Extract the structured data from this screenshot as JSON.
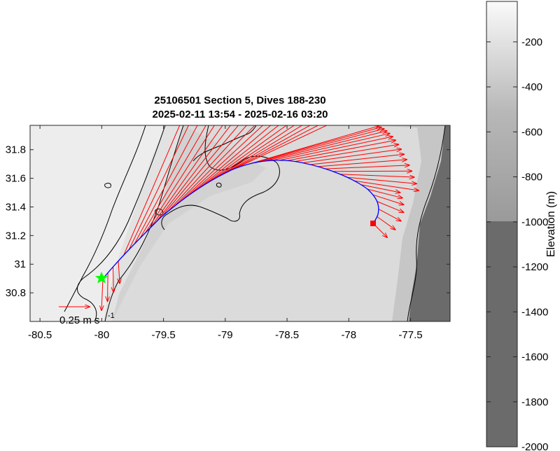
{
  "figure": {
    "title_line1": "25106501 Section 5, Dives 188-230",
    "title_line2": "2025-02-11 13:54 - 2025-02-16 03:20"
  },
  "map": {
    "x_ticks": [
      "-80.5",
      "-80",
      "-79.5",
      "-79",
      "-78.5",
      "-78",
      "-77.5"
    ],
    "x_tick_values": [
      -80.5,
      -80,
      -79.5,
      -79,
      -78.5,
      -78,
      -77.5
    ],
    "y_ticks": [
      "30.8",
      "31",
      "31.2",
      "31.4",
      "31.6",
      "31.8"
    ],
    "y_tick_values": [
      30.8,
      31,
      31.2,
      31.4,
      31.6,
      31.8
    ],
    "xlim": [
      -80.58,
      -77.18
    ],
    "ylim": [
      30.6,
      31.97
    ],
    "track_color": "#0000ff",
    "current_vector_color": "#ff0000",
    "start_marker": {
      "symbol": "star",
      "color": "#00ff00",
      "lon": -79.97,
      "lat": 30.91
    },
    "end_marker": {
      "symbol": "square",
      "color": "#ff0000",
      "lon": -77.76,
      "lat": 31.29
    },
    "scale_vector": {
      "label": "0.25 m s",
      "exponent": "-1",
      "speed": 0.25
    }
  },
  "colorbar": {
    "label": "Elevation (m)",
    "ticks": [
      "-200",
      "-400",
      "-600",
      "-800",
      "-1000",
      "-1200",
      "-1400",
      "-1600",
      "-1800",
      "-2000"
    ],
    "tick_values": [
      -200,
      -400,
      -600,
      -800,
      -1000,
      -1200,
      -1400,
      -1600,
      -1800,
      -2000
    ],
    "range": [
      -2000,
      -20
    ]
  }
}
